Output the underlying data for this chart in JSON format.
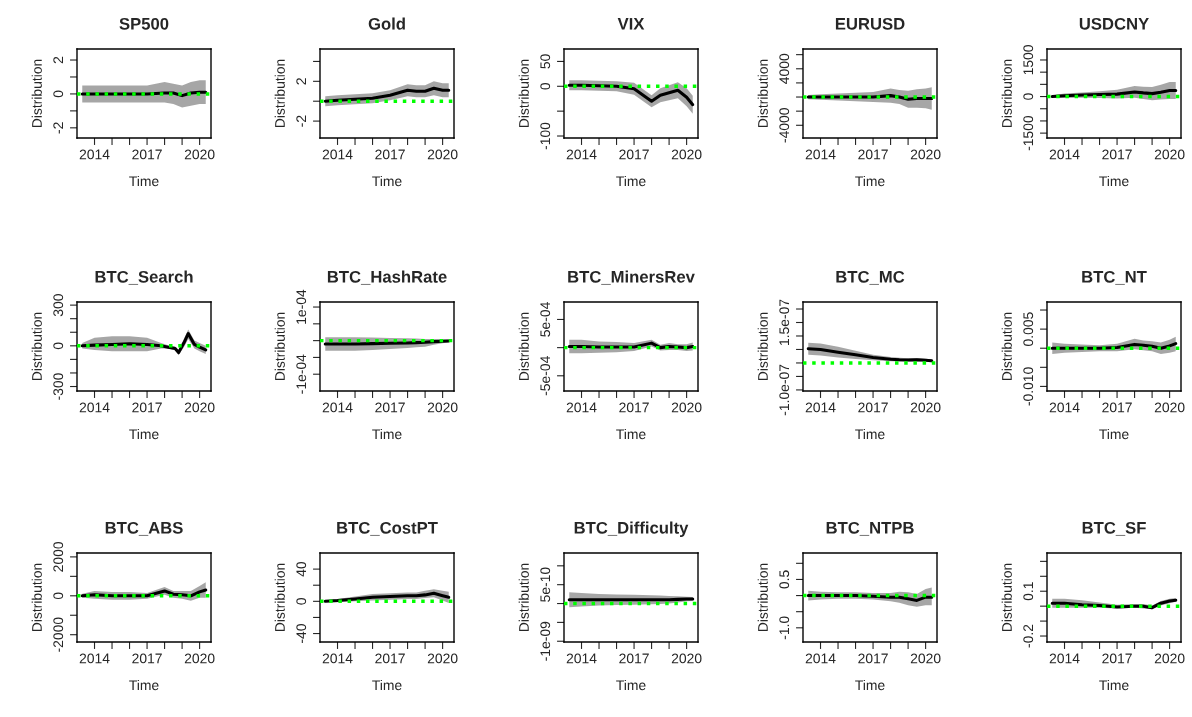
{
  "chart_data": [
    {
      "type": "line",
      "title": "SP500",
      "xlabel": "Time",
      "ylabel": "Distribution",
      "x": [
        2013.3,
        2014,
        2015,
        2016,
        2017,
        2018,
        2018.5,
        2019,
        2019.5,
        2020,
        2020.35
      ],
      "xlim": [
        2013.0,
        2020.65
      ],
      "xticks": [
        2014,
        {
          "value": 2015,
          "label": null
        },
        {
          "value": 2016,
          "label": null
        },
        2017,
        {
          "value": 2018,
          "label": null
        },
        {
          "value": 2019,
          "label": null
        },
        2020
      ],
      "ylim": [
        -2.6,
        2.65
      ],
      "yticks": [
        -2,
        {
          "value": -1,
          "label": null
        },
        0,
        {
          "value": 1,
          "label": null
        },
        2
      ],
      "ref_lines": [
        {
          "axis": "y",
          "value": 0,
          "color": "#00ff00",
          "line_style": "dotted"
        }
      ],
      "series": [
        {
          "color": "#000000",
          "values": [
            0,
            0,
            0,
            0,
            0,
            0.05,
            0.05,
            -0.1,
            0.05,
            0.1,
            0.1
          ],
          "lower": [
            -0.5,
            -0.5,
            -0.5,
            -0.5,
            -0.5,
            -0.5,
            -0.6,
            -0.8,
            -0.7,
            -0.6,
            -0.6
          ],
          "upper": [
            0.5,
            0.5,
            0.5,
            0.5,
            0.5,
            0.7,
            0.6,
            0.5,
            0.7,
            0.8,
            0.8
          ]
        }
      ]
    },
    {
      "type": "line",
      "title": "Gold",
      "xlabel": "Time",
      "ylabel": "Distribution",
      "x": [
        2013.3,
        2014,
        2015,
        2016,
        2017,
        2018,
        2018.5,
        2019,
        2019.5,
        2020,
        2020.35
      ],
      "xlim": [
        2013.0,
        2020.65
      ],
      "xticks": [
        2014,
        {
          "value": 2015,
          "label": null
        },
        {
          "value": 2016,
          "label": null
        },
        2017,
        {
          "value": 2018,
          "label": null
        },
        {
          "value": 2019,
          "label": null
        },
        2020
      ],
      "ylim": [
        -3.7,
        5.25
      ],
      "yticks": [
        -2,
        {
          "value": 0,
          "label": null
        },
        2,
        {
          "value": 4,
          "label": null
        }
      ],
      "ref_lines": [
        {
          "axis": "y",
          "value": 0,
          "color": "#00ff00",
          "line_style": "dotted"
        }
      ],
      "series": [
        {
          "color": "#000000",
          "values": [
            0,
            0.1,
            0.2,
            0.3,
            0.6,
            1.1,
            1.0,
            1.0,
            1.3,
            1.1,
            1.1
          ],
          "lower": [
            -0.5,
            -0.4,
            -0.3,
            -0.2,
            0.1,
            0.5,
            0.4,
            0.4,
            0.6,
            0.4,
            0.4
          ],
          "upper": [
            0.5,
            0.6,
            0.7,
            0.8,
            1.1,
            1.7,
            1.6,
            1.6,
            2.0,
            1.8,
            1.8
          ]
        }
      ]
    },
    {
      "type": "line",
      "title": "VIX",
      "xlabel": "Time",
      "ylabel": "Distribution",
      "x": [
        2013.3,
        2014,
        2015,
        2016,
        2017,
        2018,
        2018.5,
        2019,
        2019.5,
        2020,
        2020.35
      ],
      "xlim": [
        2013.0,
        2020.65
      ],
      "xticks": [
        2014,
        {
          "value": 2015,
          "label": null
        },
        {
          "value": 2016,
          "label": null
        },
        2017,
        {
          "value": 2018,
          "label": null
        },
        {
          "value": 2019,
          "label": null
        },
        2020
      ],
      "ylim": [
        -104,
        75
      ],
      "yticks": [
        -100,
        {
          "value": -50,
          "label": null
        },
        0,
        50
      ],
      "ref_lines": [
        {
          "axis": "y",
          "value": 0,
          "color": "#00ff00",
          "line_style": "dotted"
        }
      ],
      "series": [
        {
          "color": "#000000",
          "values": [
            2,
            2,
            1,
            0,
            -5,
            -30,
            -18,
            -13,
            -8,
            -22,
            -37
          ],
          "lower": [
            -8,
            -8,
            -9,
            -10,
            -17,
            -42,
            -32,
            -28,
            -24,
            -40,
            -55
          ],
          "upper": [
            12,
            12,
            11,
            10,
            7,
            -18,
            -4,
            2,
            8,
            -4,
            -19
          ]
        }
      ]
    },
    {
      "type": "line",
      "title": "EURUSD",
      "xlabel": "Time",
      "ylabel": "Distribution",
      "x": [
        2013.3,
        2014,
        2015,
        2016,
        2017,
        2018,
        2018.5,
        2019,
        2019.5,
        2020,
        2020.35
      ],
      "xlim": [
        2013.0,
        2020.65
      ],
      "xticks": [
        2014,
        {
          "value": 2015,
          "label": null
        },
        {
          "value": 2016,
          "label": null
        },
        2017,
        {
          "value": 2018,
          "label": null
        },
        {
          "value": 2019,
          "label": null
        },
        2020
      ],
      "ylim": [
        -5800,
        6800
      ],
      "yticks": [
        -4000,
        {
          "value": -2000,
          "label": null
        },
        {
          "value": 0,
          "label": null
        },
        {
          "value": 2000,
          "label": null
        },
        4000,
        {
          "value": 6000,
          "label": null
        }
      ],
      "ref_lines": [
        {
          "axis": "y",
          "value": 0,
          "color": "#00ff00",
          "line_style": "dotted"
        }
      ],
      "series": [
        {
          "color": "#000000",
          "values": [
            0,
            0,
            0,
            0,
            0,
            200,
            0,
            -300,
            -200,
            -200,
            -200
          ],
          "lower": [
            -300,
            -400,
            -500,
            -600,
            -700,
            -800,
            -1000,
            -1500,
            -1500,
            -1600,
            -1800
          ],
          "upper": [
            300,
            400,
            500,
            600,
            700,
            1200,
            1000,
            900,
            1100,
            1200,
            1400
          ]
        }
      ]
    },
    {
      "type": "line",
      "title": "USDCNY",
      "xlabel": "Time",
      "ylabel": "Distribution",
      "x": [
        2013.3,
        2014,
        2015,
        2016,
        2017,
        2018,
        2018.5,
        2019,
        2019.5,
        2020,
        2020.35
      ],
      "xlim": [
        2013.0,
        2020.65
      ],
      "xticks": [
        2014,
        {
          "value": 2015,
          "label": null
        },
        {
          "value": 2016,
          "label": null
        },
        2017,
        {
          "value": 2018,
          "label": null
        },
        {
          "value": 2019,
          "label": null
        },
        2020
      ],
      "ylim": [
        -1700,
        1950
      ],
      "yticks": [
        -1500,
        {
          "value": -1000,
          "label": null
        },
        {
          "value": -500,
          "label": null
        },
        0,
        {
          "value": 500,
          "label": null
        },
        {
          "value": 1000,
          "label": null
        },
        1500
      ],
      "ref_lines": [
        {
          "axis": "y",
          "value": 0,
          "color": "#00ff00",
          "line_style": "dotted"
        }
      ],
      "series": [
        {
          "color": "#000000",
          "values": [
            0,
            30,
            60,
            80,
            100,
            190,
            150,
            120,
            180,
            250,
            250
          ],
          "lower": [
            -50,
            -60,
            -50,
            -60,
            -80,
            -50,
            -100,
            -150,
            -120,
            -100,
            -100
          ],
          "upper": [
            50,
            120,
            170,
            220,
            280,
            430,
            400,
            390,
            480,
            600,
            600
          ]
        }
      ]
    },
    {
      "type": "line",
      "title": "BTC_Search",
      "xlabel": "Time",
      "ylabel": "Distribution",
      "x": [
        2013.3,
        2014,
        2015,
        2016,
        2017,
        2017.8,
        2018.2,
        2018.6,
        2018.8,
        2019.1,
        2019.35,
        2019.7,
        2020,
        2020.35
      ],
      "xlim": [
        2013.0,
        2020.65
      ],
      "xticks": [
        2014,
        {
          "value": 2015,
          "label": null
        },
        {
          "value": 2016,
          "label": null
        },
        2017,
        {
          "value": 2018,
          "label": null
        },
        {
          "value": 2019,
          "label": null
        },
        2020
      ],
      "ylim": [
        -333,
        323
      ],
      "yticks": [
        -300,
        {
          "value": -200,
          "label": null
        },
        {
          "value": -100,
          "label": null
        },
        0,
        {
          "value": 100,
          "label": null
        },
        {
          "value": 200,
          "label": null
        },
        300
      ],
      "ref_lines": [
        {
          "axis": "y",
          "value": 0,
          "color": "#00ff00",
          "line_style": "dotted"
        }
      ],
      "series": [
        {
          "color": "#000000",
          "values": [
            0,
            5,
            10,
            15,
            10,
            0,
            -10,
            -20,
            -50,
            20,
            90,
            10,
            -10,
            -30
          ],
          "lower": [
            -20,
            -30,
            -40,
            -40,
            -40,
            -20,
            -20,
            -30,
            -70,
            -10,
            50,
            -20,
            -40,
            -60
          ],
          "upper": [
            20,
            60,
            70,
            70,
            60,
            20,
            5,
            -5,
            -30,
            50,
            120,
            40,
            20,
            0
          ]
        }
      ]
    },
    {
      "type": "line",
      "title": "BTC_HashRate",
      "xlabel": "Time",
      "ylabel": "Distribution",
      "x": [
        2013.3,
        2014,
        2015,
        2016,
        2017,
        2018,
        2018.5,
        2019,
        2019.5,
        2020,
        2020.35
      ],
      "xlim": [
        2013.0,
        2020.65
      ],
      "xticks": [
        2014,
        {
          "value": 2015,
          "label": null
        },
        {
          "value": 2016,
          "label": null
        },
        2017,
        {
          "value": 2018,
          "label": null
        },
        {
          "value": 2019,
          "label": null
        },
        2020
      ],
      "ylim": [
        -0.00015,
        0.000115
      ],
      "yticks": [
        {
          "value": -0.0001,
          "label": "-1e-04"
        },
        {
          "value": -5e-05,
          "label": null
        },
        {
          "value": 0,
          "label": null
        },
        {
          "value": 5e-05,
          "label": null
        },
        {
          "value": 0.0001,
          "label": "1e-04"
        }
      ],
      "ref_lines": [
        {
          "axis": "y",
          "value": 0,
          "color": "#00ff00",
          "line_style": "dotted"
        }
      ],
      "series": [
        {
          "color": "#000000",
          "values": [
            -1e-05,
            -1e-05,
            -1e-05,
            -9e-06,
            -8e-06,
            -7e-06,
            -6e-06,
            -5e-06,
            -3e-06,
            -2e-06,
            -1e-06
          ],
          "lower": [
            -3e-05,
            -3e-05,
            -3e-05,
            -2.8e-05,
            -2.5e-05,
            -2.2e-05,
            -2e-05,
            -1.8e-05,
            -1.2e-05,
            -8e-06,
            -5e-06
          ],
          "upper": [
            1e-05,
            1e-05,
            1e-05,
            9e-06,
            8e-06,
            7e-06,
            6e-06,
            5e-06,
            5e-06,
            4e-06,
            3e-06
          ]
        }
      ]
    },
    {
      "type": "line",
      "title": "BTC_MinersRev",
      "xlabel": "Time",
      "ylabel": "Distribution",
      "x": [
        2013.3,
        2014,
        2015,
        2016,
        2017,
        2018,
        2018.5,
        2019,
        2019.5,
        2020,
        2020.35
      ],
      "xlim": [
        2013.0,
        2020.65
      ],
      "xticks": [
        2014,
        {
          "value": 2015,
          "label": null
        },
        {
          "value": 2016,
          "label": null
        },
        2017,
        {
          "value": 2018,
          "label": null
        },
        {
          "value": 2019,
          "label": null
        },
        2020
      ],
      "ylim": [
        -0.00077,
        0.00081
      ],
      "yticks": [
        {
          "value": -0.0005,
          "label": "-5e-04"
        },
        {
          "value": 0,
          "label": null
        },
        {
          "value": 0.0005,
          "label": "5e-04"
        }
      ],
      "ref_lines": [
        {
          "axis": "y",
          "value": 0,
          "color": "#00ff00",
          "line_style": "dotted"
        }
      ],
      "series": [
        {
          "color": "#000000",
          "values": [
            2e-05,
            2e-05,
            1e-05,
            1e-05,
            1e-05,
            8e-05,
            0,
            2e-05,
            1e-05,
            0,
            2e-05
          ],
          "lower": [
            -0.0001,
            -0.0001,
            -9e-05,
            -8e-05,
            -6e-05,
            2e-05,
            -5e-05,
            -4e-05,
            -4e-05,
            -6e-05,
            -5e-05
          ],
          "upper": [
            0.00014,
            0.00014,
            0.00011,
            0.0001,
            8e-05,
            0.00014,
            5e-05,
            8e-05,
            6e-05,
            6e-05,
            9e-05
          ]
        }
      ]
    },
    {
      "type": "line",
      "title": "BTC_MC",
      "xlabel": "Time",
      "ylabel": "Distribution",
      "x": [
        2013.3,
        2014,
        2015,
        2016,
        2017,
        2018,
        2018.5,
        2019,
        2019.5,
        2020,
        2020.35
      ],
      "xlim": [
        2013.0,
        2020.65
      ],
      "xticks": [
        2014,
        {
          "value": 2015,
          "label": null
        },
        {
          "value": 2016,
          "label": null
        },
        2017,
        {
          "value": 2018,
          "label": null
        },
        {
          "value": 2019,
          "label": null
        },
        2020
      ],
      "ylim": [
        -1.04e-07,
        2.26e-07
      ],
      "yticks": [
        {
          "value": -1e-07,
          "label": "-1.0e-07"
        },
        {
          "value": -5e-08,
          "label": null
        },
        {
          "value": 0,
          "label": null
        },
        {
          "value": 5e-08,
          "label": null
        },
        {
          "value": 1e-07,
          "label": null
        },
        {
          "value": 1.5e-07,
          "label": "1.5e-07"
        },
        {
          "value": 2e-07,
          "label": null
        }
      ],
      "ref_lines": [
        {
          "axis": "y",
          "value": 0,
          "color": "#00ff00",
          "line_style": "dotted"
        }
      ],
      "series": [
        {
          "color": "#000000",
          "values": [
            5.3e-08,
            5e-08,
            4e-08,
            3e-08,
            2e-08,
            1.4e-08,
            1.2e-08,
            1.1e-08,
            1.2e-08,
            1e-08,
            8e-09
          ],
          "lower": [
            3e-08,
            2.8e-08,
            2e-08,
            1.5e-08,
            1e-08,
            6e-09,
            5e-09,
            5e-09,
            6e-09,
            4e-09,
            3e-09
          ],
          "upper": [
            7.5e-08,
            7.2e-08,
            6e-08,
            4.5e-08,
            3e-08,
            2.2e-08,
            1.9e-08,
            1.7e-08,
            1.8e-08,
            1.6e-08,
            1.3e-08
          ]
        }
      ]
    },
    {
      "type": "line",
      "title": "BTC_NT",
      "xlabel": "Time",
      "ylabel": "Distribution",
      "x": [
        2013.3,
        2014,
        2015,
        2016,
        2017,
        2018,
        2018.5,
        2019,
        2019.5,
        2020,
        2020.35
      ],
      "xlim": [
        2013.0,
        2020.65
      ],
      "xticks": [
        2014,
        {
          "value": 2015,
          "label": null
        },
        {
          "value": 2016,
          "label": null
        },
        2017,
        {
          "value": 2018,
          "label": null
        },
        {
          "value": 2019,
          "label": null
        },
        2020
      ],
      "ylim": [
        -0.0112,
        0.0121
      ],
      "yticks": [
        {
          "value": -0.01,
          "label": "-0.010"
        },
        {
          "value": -0.005,
          "label": null
        },
        {
          "value": 0,
          "label": null
        },
        {
          "value": 0.005,
          "label": "0.005"
        },
        {
          "value": 0.01,
          "label": null
        }
      ],
      "ref_lines": [
        {
          "axis": "y",
          "value": 0,
          "color": "#00ff00",
          "line_style": "dotted"
        }
      ],
      "series": [
        {
          "color": "#000000",
          "values": [
            0,
            0,
            0,
            0,
            0.0002,
            0.001,
            0.0008,
            0.0005,
            0,
            0.0006,
            0.0012
          ],
          "lower": [
            -0.0015,
            -0.0012,
            -0.001,
            -0.0008,
            -0.0008,
            -0.0003,
            -0.0005,
            -0.0008,
            -0.0015,
            -0.0012,
            -0.0008
          ],
          "upper": [
            0.0015,
            0.0012,
            0.001,
            0.0008,
            0.0012,
            0.0025,
            0.002,
            0.0018,
            0.0015,
            0.0022,
            0.003
          ]
        }
      ]
    },
    {
      "type": "line",
      "title": "BTC_ABS",
      "xlabel": "Time",
      "ylabel": "Distribution",
      "x": [
        2013.3,
        2014,
        2015,
        2016,
        2017,
        2018,
        2018.5,
        2019,
        2019.5,
        2020,
        2020.35
      ],
      "xlim": [
        2013.0,
        2020.65
      ],
      "xticks": [
        2014,
        {
          "value": 2015,
          "label": null
        },
        {
          "value": 2016,
          "label": null
        },
        2017,
        {
          "value": 2018,
          "label": null
        },
        {
          "value": 2019,
          "label": null
        },
        2020
      ],
      "ylim": [
        -2375,
        2200
      ],
      "yticks": [
        -2000,
        {
          "value": -1000,
          "label": null
        },
        0,
        {
          "value": 1000,
          "label": null
        },
        2000
      ],
      "ref_lines": [
        {
          "axis": "y",
          "value": 0,
          "color": "#00ff00",
          "line_style": "dotted"
        }
      ],
      "series": [
        {
          "color": "#000000",
          "values": [
            0,
            50,
            0,
            0,
            0,
            250,
            80,
            50,
            0,
            200,
            300
          ],
          "lower": [
            -100,
            -150,
            -200,
            -200,
            -150,
            50,
            -100,
            -150,
            -250,
            -100,
            -100
          ],
          "upper": [
            100,
            250,
            200,
            200,
            150,
            450,
            250,
            250,
            250,
            500,
            700
          ]
        }
      ]
    },
    {
      "type": "line",
      "title": "BTC_CostPT",
      "xlabel": "Time",
      "ylabel": "Distribution",
      "x": [
        2013.3,
        2014,
        2015,
        2016,
        2017,
        2018,
        2018.5,
        2019,
        2019.5,
        2020,
        2020.35
      ],
      "xlim": [
        2013.0,
        2020.65
      ],
      "xticks": [
        2014,
        {
          "value": 2015,
          "label": null
        },
        {
          "value": 2016,
          "label": null
        },
        2017,
        {
          "value": 2018,
          "label": null
        },
        {
          "value": 2019,
          "label": null
        },
        2020
      ],
      "ylim": [
        -50.5,
        60
      ],
      "yticks": [
        -40,
        {
          "value": -20,
          "label": null
        },
        0,
        {
          "value": 20,
          "label": null
        },
        40
      ],
      "ref_lines": [
        {
          "axis": "y",
          "value": 0,
          "color": "#00ff00",
          "line_style": "dotted"
        }
      ],
      "series": [
        {
          "color": "#000000",
          "values": [
            0,
            1,
            3,
            5,
            6,
            7,
            7,
            8,
            10,
            7,
            5
          ],
          "lower": [
            -1,
            -1,
            0,
            1,
            2,
            3,
            3,
            4,
            5,
            1,
            -2
          ],
          "upper": [
            1,
            3,
            6,
            9,
            10,
            11,
            11,
            13,
            15,
            13,
            12
          ]
        }
      ]
    },
    {
      "type": "line",
      "title": "BTC_Difficulty",
      "xlabel": "Time",
      "ylabel": "Distribution",
      "x": [
        2013.3,
        2014,
        2015,
        2016,
        2017,
        2018,
        2018.5,
        2019,
        2019.5,
        2020,
        2020.35
      ],
      "xlim": [
        2013.0,
        2020.65
      ],
      "xticks": [
        2014,
        {
          "value": 2015,
          "label": null
        },
        {
          "value": 2016,
          "label": null
        },
        2017,
        {
          "value": 2018,
          "label": null
        },
        {
          "value": 2019,
          "label": null
        },
        2020
      ],
      "ylim": [
        -1.02e-09,
        1.34e-09
      ],
      "yticks": [
        {
          "value": -1e-09,
          "label": "-1e-09"
        },
        {
          "value": -5e-10,
          "label": null
        },
        {
          "value": 0,
          "label": null
        },
        {
          "value": 5e-10,
          "label": "5e-10"
        },
        {
          "value": 1e-09,
          "label": null
        }
      ],
      "ref_lines": [
        {
          "axis": "y",
          "value": 0,
          "color": "#00ff00",
          "line_style": "dotted"
        }
      ],
      "series": [
        {
          "color": "#000000",
          "values": [
            1e-10,
            1e-10,
            1e-10,
            1e-10,
            1e-10,
            1e-10,
            1e-10,
            1e-10,
            1.1e-10,
            1.2e-10,
            1.2e-10
          ],
          "lower": [
            -1e-10,
            -8e-11,
            -5e-11,
            -4e-11,
            -3e-11,
            -2e-11,
            -1e-11,
            0,
            3e-11,
            6e-11,
            7e-11
          ],
          "upper": [
            3e-10,
            2.8e-10,
            2.5e-10,
            2.4e-10,
            2.3e-10,
            2.2e-10,
            2.1e-10,
            2e-10,
            1.9e-10,
            1.8e-10,
            1.7e-10
          ]
        }
      ]
    },
    {
      "type": "line",
      "title": "BTC_NTPB",
      "xlabel": "Time",
      "ylabel": "Distribution",
      "x": [
        2013.3,
        2014,
        2015,
        2016,
        2017,
        2018,
        2018.5,
        2019,
        2019.5,
        2020,
        2020.35
      ],
      "xlim": [
        2013.0,
        2020.65
      ],
      "xticks": [
        2014,
        {
          "value": 2015,
          "label": null
        },
        {
          "value": 2016,
          "label": null
        },
        2017,
        {
          "value": 2018,
          "label": null
        },
        {
          "value": 2019,
          "label": null
        },
        2020
      ],
      "ylim": [
        -1.44,
        1.32
      ],
      "yticks": [
        {
          "value": -1.0,
          "label": "-1.0"
        },
        {
          "value": -0.5,
          "label": null
        },
        {
          "value": 0,
          "label": null
        },
        {
          "value": 0.5,
          "label": "0.5"
        },
        {
          "value": 1.0,
          "label": null
        }
      ],
      "ref_lines": [
        {
          "axis": "y",
          "value": 0,
          "color": "#00ff00",
          "line_style": "dotted"
        }
      ],
      "series": [
        {
          "color": "#000000",
          "values": [
            0,
            0,
            0,
            0,
            -0.02,
            -0.05,
            -0.05,
            -0.1,
            -0.15,
            -0.05,
            -0.05
          ],
          "lower": [
            -0.15,
            -0.12,
            -0.1,
            -0.1,
            -0.12,
            -0.18,
            -0.22,
            -0.3,
            -0.35,
            -0.3,
            -0.3
          ],
          "upper": [
            0.15,
            0.12,
            0.1,
            0.1,
            0.08,
            0.08,
            0.12,
            0.1,
            0.05,
            0.2,
            0.25
          ]
        }
      ]
    },
    {
      "type": "line",
      "title": "BTC_SF",
      "xlabel": "Time",
      "ylabel": "Distribution",
      "x": [
        2013.3,
        2014,
        2015,
        2016,
        2017,
        2018,
        2018.5,
        2019,
        2019.5,
        2020,
        2020.35
      ],
      "xlim": [
        2013.0,
        2020.65
      ],
      "xticks": [
        2014,
        {
          "value": 2015,
          "label": null
        },
        {
          "value": 2016,
          "label": null
        },
        2017,
        {
          "value": 2018,
          "label": null
        },
        {
          "value": 2019,
          "label": null
        },
        2020
      ],
      "ylim": [
        -0.24,
        0.356
      ],
      "yticks": [
        {
          "value": -0.2,
          "label": "-0.2"
        },
        {
          "value": -0.1,
          "label": null
        },
        {
          "value": 0,
          "label": null
        },
        {
          "value": 0.1,
          "label": "0.1"
        },
        {
          "value": 0.2,
          "label": null
        },
        {
          "value": 0.3,
          "label": null
        }
      ],
      "ref_lines": [
        {
          "axis": "y",
          "value": 0,
          "color": "#00ff00",
          "line_style": "dotted"
        }
      ],
      "series": [
        {
          "color": "#000000",
          "values": [
            0.02,
            0.02,
            0.01,
            0.005,
            -0.005,
            0,
            0,
            -0.01,
            0.02,
            0.035,
            0.04
          ],
          "lower": [
            -0.01,
            -0.01,
            -0.01,
            -0.01,
            -0.015,
            -0.01,
            -0.015,
            -0.02,
            0.005,
            0.02,
            0.03
          ],
          "upper": [
            0.05,
            0.05,
            0.04,
            0.025,
            0.01,
            0.015,
            0.015,
            0.005,
            0.035,
            0.05,
            0.055
          ]
        }
      ]
    }
  ]
}
